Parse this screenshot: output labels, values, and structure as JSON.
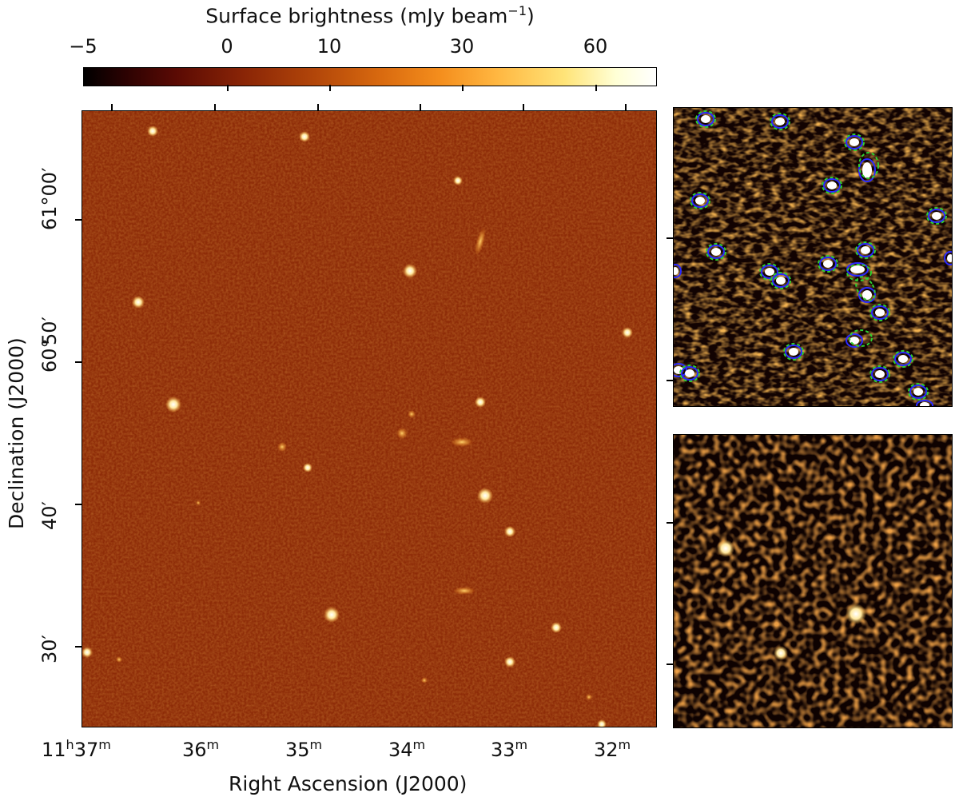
{
  "colorbar": {
    "title": "Surface brightness (mJy beam",
    "title_sup": "−1",
    "title_end": ")",
    "ticks": [
      "−5",
      "0",
      "10",
      "30",
      "60"
    ],
    "colormap": [
      "#000000",
      "#5a0a04",
      "#b14509",
      "#f48d1c",
      "#ffe478",
      "#ffffff"
    ]
  },
  "main_panel": {
    "xlabel": "Right Ascension (J2000)",
    "ylabel": "Declination (J2000)",
    "x_ticks": [
      {
        "h": "11",
        "h_unit": "h",
        "m": "37",
        "m_unit": "m"
      },
      {
        "m": "36",
        "m_unit": "m"
      },
      {
        "m": "35",
        "m_unit": "m"
      },
      {
        "m": "34",
        "m_unit": "m"
      },
      {
        "m": "33",
        "m_unit": "m"
      },
      {
        "m": "32",
        "m_unit": "m"
      }
    ],
    "y_ticks": [
      "61°00′",
      "60°50′",
      "60°",
      "40′",
      "30′"
    ],
    "y_ticks_extra": {
      "minute_label": "50′"
    }
  },
  "inset_top": {
    "annotations": "source-contours"
  },
  "inset_bottom": {
    "annotations": "none"
  }
}
